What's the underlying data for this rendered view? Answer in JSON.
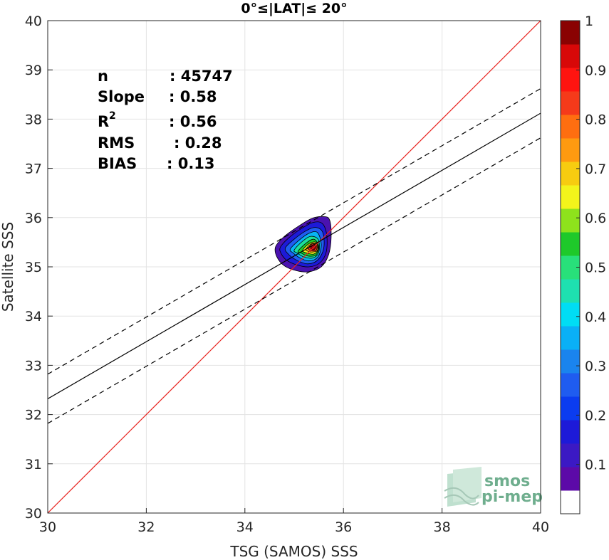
{
  "chart_data": {
    "type": "contour",
    "title": "0°≤|LAT|≤ 20°",
    "xlabel": "TSG (SAMOS) SSS",
    "ylabel": "Satellite SSS",
    "xlim": [
      30,
      40
    ],
    "ylim": [
      30,
      40
    ],
    "xticks": [
      "30",
      "32",
      "34",
      "36",
      "38",
      "40"
    ],
    "yticks": [
      "30",
      "31",
      "32",
      "33",
      "34",
      "35",
      "36",
      "37",
      "38",
      "39",
      "40"
    ],
    "grid": true,
    "stats": [
      {
        "label": "n",
        "value": ": 45747"
      },
      {
        "label": "Slope",
        "value": ": 0.58"
      },
      {
        "label": "R",
        "sup": "2",
        "value": ": 0.56"
      },
      {
        "label": "RMS",
        "value": ": 0.28"
      },
      {
        "label": "BIAS",
        "value": ": 0.13"
      }
    ],
    "lines": [
      {
        "name": "identity",
        "color": "#e8231f",
        "style": "solid",
        "slope": 1,
        "intercept": 0
      },
      {
        "name": "regression",
        "color": "#000000",
        "style": "solid",
        "slope": 0.58,
        "intercept": 14.92
      },
      {
        "name": "regression+rms",
        "color": "#000000",
        "style": "dashed",
        "slope": 0.58,
        "intercept": 15.42
      },
      {
        "name": "regression-rms",
        "color": "#000000",
        "style": "dashed",
        "slope": 0.58,
        "intercept": 14.42
      }
    ],
    "density_center": {
      "x": 35.38,
      "y": 35.42
    },
    "density_levels": [
      {
        "level": 0.05,
        "color": "#4a12b0",
        "x": [
          34.62,
          34.78,
          35.05,
          35.35,
          35.6,
          35.72,
          35.75,
          35.7,
          35.55,
          35.3,
          35.05,
          34.8,
          34.65
        ],
        "y": [
          35.4,
          35.6,
          35.8,
          35.98,
          36.02,
          35.95,
          35.6,
          35.25,
          35.0,
          34.9,
          34.92,
          35.02,
          35.2
        ]
      },
      {
        "level": 0.15,
        "color": "#1d1ad8",
        "x": [
          34.72,
          34.88,
          35.12,
          35.38,
          35.57,
          35.66,
          35.65,
          35.52,
          35.3,
          35.05,
          34.84,
          34.73
        ],
        "y": [
          35.4,
          35.58,
          35.76,
          35.9,
          35.88,
          35.65,
          35.3,
          35.08,
          35.0,
          35.04,
          35.14,
          35.28
        ]
      },
      {
        "level": 0.25,
        "color": "#1f5cf0",
        "x": [
          34.82,
          35.0,
          35.22,
          35.43,
          35.58,
          35.6,
          35.48,
          35.28,
          35.08,
          34.9
        ],
        "y": [
          35.38,
          35.56,
          35.72,
          35.8,
          35.7,
          35.38,
          35.14,
          35.06,
          35.12,
          35.24
        ]
      },
      {
        "level": 0.35,
        "color": "#08b4f4",
        "x": [
          34.92,
          35.1,
          35.3,
          35.47,
          35.55,
          35.48,
          35.3,
          35.12,
          34.98
        ],
        "y": [
          35.36,
          35.54,
          35.68,
          35.7,
          35.45,
          35.2,
          35.12,
          35.18,
          35.28
        ]
      },
      {
        "level": 0.45,
        "color": "#1ddf9c",
        "x": [
          35.0,
          35.17,
          35.34,
          35.49,
          35.5,
          35.38,
          35.2,
          35.06
        ],
        "y": [
          35.34,
          35.52,
          35.62,
          35.55,
          35.3,
          35.18,
          35.2,
          35.28
        ]
      },
      {
        "level": 0.55,
        "color": "#1ec92a",
        "x": [
          35.08,
          35.24,
          35.4,
          35.5,
          35.44,
          35.28,
          35.14
        ],
        "y": [
          35.32,
          35.48,
          35.56,
          35.42,
          35.24,
          35.22,
          35.28
        ]
      },
      {
        "level": 0.65,
        "color": "#f3ee1b",
        "x": [
          35.17,
          35.3,
          35.44,
          35.49,
          35.4,
          35.26
        ],
        "y": [
          35.33,
          35.47,
          35.5,
          35.36,
          35.26,
          35.28
        ]
      },
      {
        "level": 0.75,
        "color": "#ff9a10",
        "x": [
          35.24,
          35.35,
          35.46,
          35.47,
          35.36,
          35.27
        ],
        "y": [
          35.36,
          35.47,
          35.46,
          35.33,
          35.3,
          35.32
        ]
      },
      {
        "level": 0.85,
        "color": "#f52a1a",
        "x": [
          35.29,
          35.38,
          35.46,
          35.44,
          35.34
        ],
        "y": [
          35.38,
          35.47,
          35.42,
          35.33,
          35.33
        ]
      },
      {
        "level": 0.95,
        "color": "#a8020c",
        "x": [
          35.34,
          35.4,
          35.44,
          35.4,
          35.35
        ],
        "y": [
          35.4,
          35.45,
          35.4,
          35.35,
          35.36
        ]
      }
    ],
    "colorbar": {
      "ticks": [
        "0.1",
        "0.2",
        "0.3",
        "0.4",
        "0.5",
        "0.6",
        "0.7",
        "0.8",
        "0.9",
        "1"
      ],
      "colors": [
        "#ffffff",
        "#5c0aa8",
        "#3b19c4",
        "#1d1ad8",
        "#0b3cf0",
        "#1f5cf0",
        "#1a84ee",
        "#0ab0f6",
        "#00ddf4",
        "#1ee0b0",
        "#28e07a",
        "#1ec92a",
        "#8ee21c",
        "#f3f41b",
        "#f7cc10",
        "#ff9a10",
        "#ff6e10",
        "#f53a1a",
        "#ff1410",
        "#d80808",
        "#8a0202"
      ]
    },
    "logo": {
      "line1": "smos",
      "line2": "pi-mep"
    }
  }
}
